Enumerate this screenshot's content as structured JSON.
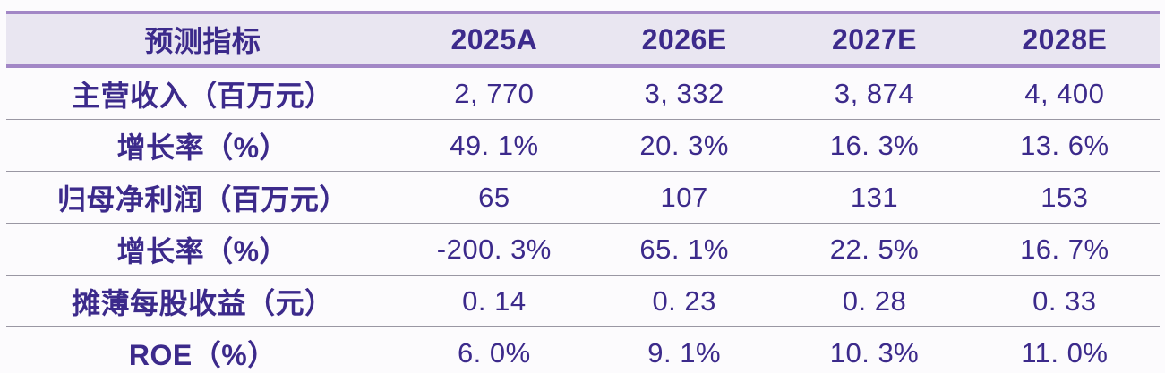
{
  "table": {
    "header": {
      "indicator_label": "预测指标",
      "columns": [
        "2025A",
        "2026E",
        "2027E",
        "2028E"
      ]
    },
    "rows": [
      {
        "label": "主营收入（百万元）",
        "values": [
          "2, 770",
          "3, 332",
          "3, 874",
          "4, 400"
        ]
      },
      {
        "label": "增长率（%）",
        "values": [
          "49. 1%",
          "20. 3%",
          "16. 3%",
          "13. 6%"
        ]
      },
      {
        "label": "归母净利润（百万元）",
        "values": [
          "65",
          "107",
          "131",
          "153"
        ]
      },
      {
        "label": "增长率（%）",
        "values": [
          "-200. 3%",
          "65. 1%",
          "22. 5%",
          "16. 7%"
        ]
      },
      {
        "label": "摊薄每股收益（元）",
        "values": [
          "0. 14",
          "0. 23",
          "0. 28",
          "0. 33"
        ]
      },
      {
        "label": "ROE（%）",
        "values": [
          "6. 0%",
          "9. 1%",
          "10. 3%",
          "11. 0%"
        ]
      }
    ]
  },
  "colors": {
    "text_color": "#3C2A8B",
    "accent_line": "#A287C6",
    "header_bg": "#E9E6F1",
    "separator": "#9A97A3",
    "page_bg": "#FCFBFD"
  }
}
